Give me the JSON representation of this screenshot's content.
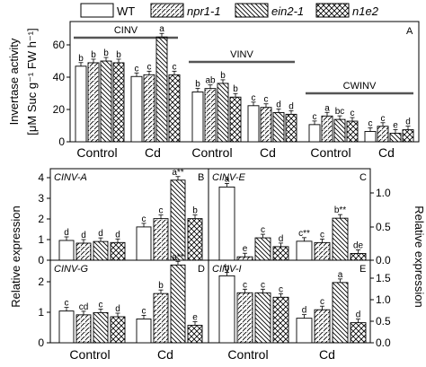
{
  "legend": {
    "entries": [
      {
        "key": "WT",
        "label": "WT",
        "pattern": "none"
      },
      {
        "key": "npr",
        "label": "npr1-1",
        "pattern": "hatch-fwd"
      },
      {
        "key": "ein",
        "label": "ein2-1",
        "pattern": "hatch-back"
      },
      {
        "key": "n1e2",
        "label": "n1e2",
        "pattern": "cross"
      }
    ]
  },
  "panel_a": {
    "letter": "A",
    "ylabel_line1": "Invertase activity",
    "ylabel_line2": "[μM Suc g⁻¹ FW h⁻¹]",
    "yticks": [
      "0",
      "20",
      "40",
      "60"
    ],
    "groups": [
      "Control",
      "Cd",
      "Control",
      "Cd",
      "Control",
      "Cd"
    ],
    "brackets": [
      "CINV",
      "VINV",
      "CWINV"
    ]
  },
  "panel_b": {
    "letter": "B",
    "name": "CINV-A",
    "yticks": [
      "0",
      "1",
      "2",
      "3",
      "4"
    ]
  },
  "panel_c": {
    "letter": "C",
    "name": "CINV-E",
    "yticks_right": [
      "0.0",
      "0.5",
      "1.0"
    ]
  },
  "panel_d": {
    "letter": "D",
    "name": "CINV-G",
    "yticks": [
      "0",
      "1",
      "2"
    ]
  },
  "panel_e": {
    "letter": "E",
    "name": "CINV-I",
    "yticks_right": [
      "0.0",
      "0.5",
      "1.0",
      "1.5"
    ]
  },
  "bottom": {
    "ylabel_left": "Relative expression",
    "ylabel_right": "Relative expression",
    "groups": [
      "Control",
      "Cd",
      "Control",
      "Cd"
    ]
  },
  "chart_data": [
    {
      "type": "bar",
      "panel": "A",
      "ylim": [
        0,
        70
      ],
      "categories": [
        "CINV Control",
        "CINV Cd",
        "VINV Control",
        "VINV Cd",
        "CWINV Control",
        "CWINV Cd"
      ],
      "series": [
        {
          "name": "WT",
          "values": [
            44,
            38,
            29,
            21,
            10,
            6
          ]
        },
        {
          "name": "npr1-1",
          "values": [
            46,
            39,
            31,
            20,
            15,
            9
          ]
        },
        {
          "name": "ein2-1",
          "values": [
            47,
            61,
            34,
            17,
            13,
            5
          ]
        },
        {
          "name": "n1e2",
          "values": [
            46,
            39,
            26,
            16,
            12,
            7
          ]
        }
      ],
      "letters": [
        [
          "b",
          "b",
          "b",
          "b"
        ],
        [
          "c",
          "c",
          "a",
          "c"
        ],
        [
          "b",
          "ab",
          "b",
          "b"
        ],
        [
          "c",
          "c",
          "d",
          "d"
        ],
        [
          "c",
          "a",
          "bc",
          "c"
        ],
        [
          "c",
          "c",
          "e",
          "d"
        ]
      ]
    },
    {
      "type": "bar",
      "panel": "B",
      "ylim": [
        0,
        4.4
      ],
      "categories": [
        "Control",
        "Cd"
      ],
      "series": [
        {
          "name": "WT",
          "values": [
            0.95,
            1.6
          ]
        },
        {
          "name": "npr1-1",
          "values": [
            0.82,
            2.0
          ]
        },
        {
          "name": "ein2-1",
          "values": [
            0.9,
            3.85
          ]
        },
        {
          "name": "n1e2",
          "values": [
            0.85,
            2.0
          ]
        }
      ],
      "letters": [
        [
          "d",
          "d",
          "d",
          "d"
        ],
        [
          "c",
          "c",
          "a**",
          "b"
        ]
      ]
    },
    {
      "type": "bar",
      "panel": "C",
      "ylim": [
        0,
        1.35
      ],
      "categories": [
        "Control",
        "Cd"
      ],
      "series": [
        {
          "name": "WT",
          "values": [
            1.08,
            0.28
          ]
        },
        {
          "name": "npr1-1",
          "values": [
            0.05,
            0.26
          ]
        },
        {
          "name": "ein2-1",
          "values": [
            0.33,
            0.62
          ]
        },
        {
          "name": "n1e2",
          "values": [
            0.2,
            0.1
          ]
        }
      ],
      "letters": [
        [
          "a",
          "e",
          "c",
          "d"
        ],
        [
          "c**",
          "c",
          "b**",
          "de"
        ]
      ]
    },
    {
      "type": "bar",
      "panel": "D",
      "ylim": [
        0,
        2.6
      ],
      "categories": [
        "Control",
        "Cd"
      ],
      "series": [
        {
          "name": "WT",
          "values": [
            1.0,
            0.75
          ]
        },
        {
          "name": "npr1-1",
          "values": [
            0.88,
            1.55
          ]
        },
        {
          "name": "ein2-1",
          "values": [
            0.95,
            2.45
          ]
        },
        {
          "name": "n1e2",
          "values": [
            0.82,
            0.55
          ]
        }
      ],
      "letters": [
        [
          "c",
          "cd",
          "c",
          "d"
        ],
        [
          "c",
          "b",
          "a**",
          "e"
        ]
      ]
    },
    {
      "type": "bar",
      "panel": "E",
      "ylim": [
        0,
        1.85
      ],
      "categories": [
        "Control",
        "Cd"
      ],
      "series": [
        {
          "name": "WT",
          "values": [
            1.5,
            0.55
          ]
        },
        {
          "name": "npr1-1",
          "values": [
            1.12,
            0.74
          ]
        },
        {
          "name": "ein2-1",
          "values": [
            1.12,
            1.35
          ]
        },
        {
          "name": "n1e2",
          "values": [
            1.02,
            0.45
          ]
        }
      ],
      "letters": [
        [
          "b",
          "c",
          "c",
          "c"
        ],
        [
          "d",
          "c",
          "a",
          "d"
        ]
      ]
    }
  ]
}
